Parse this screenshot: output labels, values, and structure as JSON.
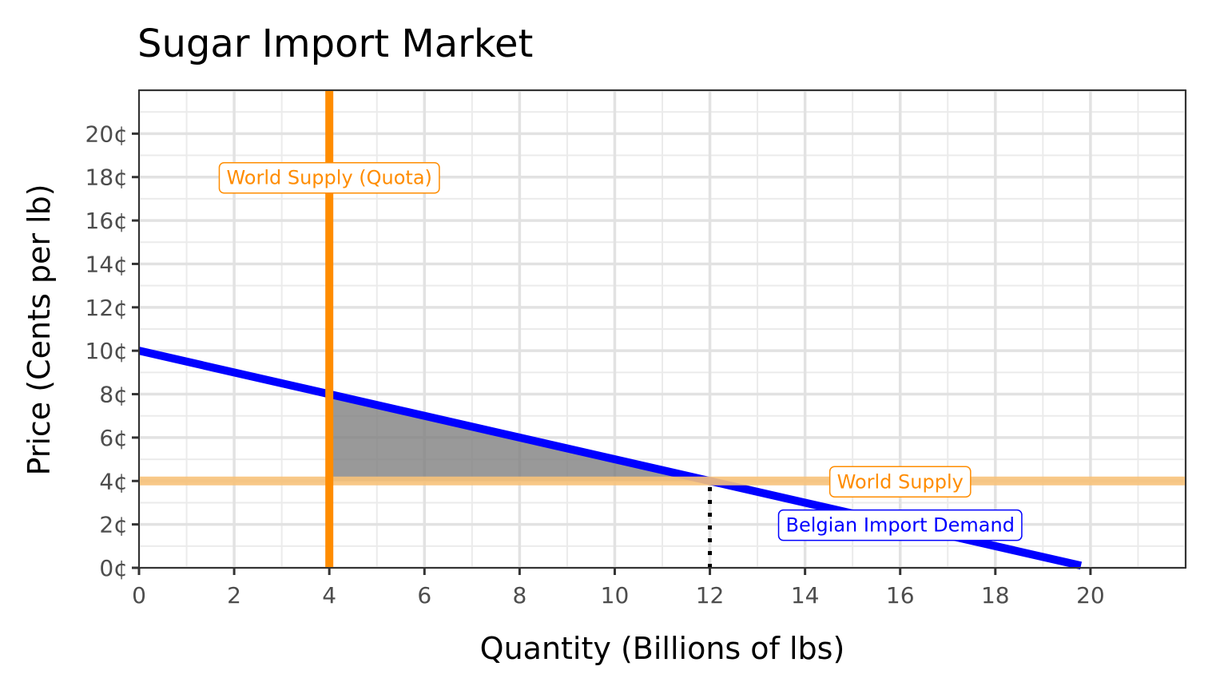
{
  "chart_data": {
    "type": "line",
    "title": "Sugar Import Market",
    "xlabel": "Quantity (Billions of lbs)",
    "ylabel": "Price (Cents per lb)",
    "xlim": [
      0,
      22
    ],
    "ylim": [
      0,
      22
    ],
    "x_ticks": [
      0,
      2,
      4,
      6,
      8,
      10,
      12,
      14,
      16,
      18,
      20
    ],
    "y_ticks": [
      0,
      2,
      4,
      6,
      8,
      10,
      12,
      14,
      16,
      18,
      20
    ],
    "y_tick_suffix": "¢",
    "grid": true,
    "series": [
      {
        "name": "Belgian Import Demand",
        "kind": "line",
        "color": "#0000ff",
        "x": [
          0,
          19.8
        ],
        "y": [
          10,
          0.1
        ]
      },
      {
        "name": "World Supply",
        "kind": "hline",
        "color": "#f7c27a",
        "y": 4
      },
      {
        "name": "World Supply (Quota)",
        "kind": "vline",
        "color": "#ff8c00",
        "x": 4
      }
    ],
    "shaded_region": {
      "color": "#808080",
      "x": [
        4,
        12,
        4
      ],
      "y": [
        8,
        4,
        4
      ]
    },
    "dotted_lines": [
      {
        "x": [
          12,
          12
        ],
        "y": [
          0,
          4
        ],
        "color": "#000000"
      }
    ],
    "annotations": [
      {
        "text": "World Supply (Quota)",
        "x": 4,
        "y": 18,
        "color": "#ff8c00"
      },
      {
        "text": "World Supply",
        "x": 16,
        "y": 4,
        "color": "#ff8c00"
      },
      {
        "text": "Belgian Import Demand",
        "x": 16,
        "y": 2,
        "color": "#0000ff"
      }
    ]
  }
}
